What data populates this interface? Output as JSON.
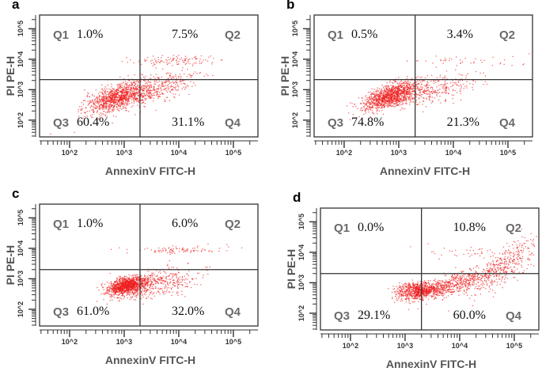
{
  "chart_data": [
    {
      "panel": "a",
      "type": "scatter",
      "xlabel": "AnnexinV FITC-H",
      "ylabel": "PI PE-H",
      "x_scale": "log",
      "y_scale": "log",
      "xlim": [
        28,
        280000
      ],
      "ylim": [
        28,
        260000
      ],
      "x_ticks": [
        "10^2",
        "10^3",
        "10^4",
        "10^5"
      ],
      "y_ticks": [
        "10^2",
        "10^3",
        "10^4",
        "10^5"
      ],
      "quadrants": [
        {
          "name": "Q1",
          "value": "1.0%"
        },
        {
          "name": "Q2",
          "value": "7.5%"
        },
        {
          "name": "Q3",
          "value": "60.4%"
        },
        {
          "name": "Q4",
          "value": "31.1%"
        }
      ]
    },
    {
      "panel": "b",
      "type": "scatter",
      "xlabel": "AnnexinV FITC-H",
      "ylabel": "PI PE-H",
      "x_scale": "log",
      "y_scale": "log",
      "xlim": [
        28,
        280000
      ],
      "ylim": [
        28,
        260000
      ],
      "x_ticks": [
        "10^2",
        "10^3",
        "10^4",
        "10^5"
      ],
      "y_ticks": [
        "10^2",
        "10^3",
        "10^4",
        "10^5"
      ],
      "quadrants": [
        {
          "name": "Q1",
          "value": "0.5%"
        },
        {
          "name": "Q2",
          "value": "3.4%"
        },
        {
          "name": "Q3",
          "value": "74.8%"
        },
        {
          "name": "Q4",
          "value": "21.3%"
        }
      ]
    },
    {
      "panel": "c",
      "type": "scatter",
      "xlabel": "AnnexinV FITC-H",
      "ylabel": "PI PE-H",
      "x_scale": "log",
      "y_scale": "log",
      "xlim": [
        28,
        280000
      ],
      "ylim": [
        28,
        260000
      ],
      "x_ticks": [
        "10^2",
        "10^3",
        "10^4",
        "10^5"
      ],
      "y_ticks": [
        "10^2",
        "10^3",
        "10^4",
        "10^5"
      ],
      "quadrants": [
        {
          "name": "Q1",
          "value": "1.0%"
        },
        {
          "name": "Q2",
          "value": "6.0%"
        },
        {
          "name": "Q3",
          "value": "61.0%"
        },
        {
          "name": "Q4",
          "value": "32.0%"
        }
      ]
    },
    {
      "panel": "d",
      "type": "scatter",
      "xlabel": "AnnexinV FITC-H",
      "ylabel": "PI PE-H",
      "x_scale": "log",
      "y_scale": "log",
      "xlim": [
        28,
        280000
      ],
      "ylim": [
        28,
        260000
      ],
      "x_ticks": [
        "10^2",
        "10^3",
        "10^4",
        "10^5"
      ],
      "y_ticks": [
        "10^2",
        "10^3",
        "10^4",
        "10^5"
      ],
      "quadrants": [
        {
          "name": "Q1",
          "value": "0.0%"
        },
        {
          "name": "Q2",
          "value": "10.8%"
        },
        {
          "name": "Q3",
          "value": "29.1%"
        },
        {
          "name": "Q4",
          "value": "60.0%"
        }
      ]
    }
  ],
  "colors": {
    "dots": "#ee1c1c",
    "gate": "#333333"
  }
}
